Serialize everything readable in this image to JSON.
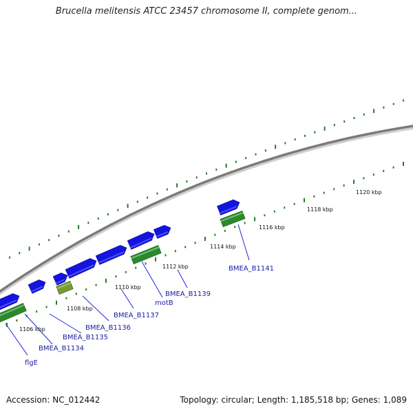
{
  "title": "Brucella melitensis ATCC 23457 chromosome II, complete genom...",
  "footer": {
    "accession": "Accession: NC_012442",
    "summary": "Topology: circular; Length: 1,185,518 bp; Genes: 1,089"
  },
  "scale_labels": [
    "1106 kbp",
    "1108 kbp",
    "1110 kbp",
    "1112 kbp",
    "1114 kbp",
    "1116 kbp",
    "1118 kbp",
    "1120 kbp"
  ],
  "gene_labels": [
    "flgE",
    "BMEA_B1134",
    "BMEA_B1135",
    "BMEA_B1136",
    "BMEA_B1137",
    "motB",
    "BMEA_B1139",
    "BMEA_B1141"
  ],
  "colors": {
    "backbone": "#7a7a7a",
    "forward_gene": "#1414e0",
    "cds": "#2a8a2a",
    "cds_alt": "#7a9a2a",
    "tick": "#2a7a2a",
    "gene_label": "#1a1aa6",
    "leader_line": "#2222dd"
  }
}
